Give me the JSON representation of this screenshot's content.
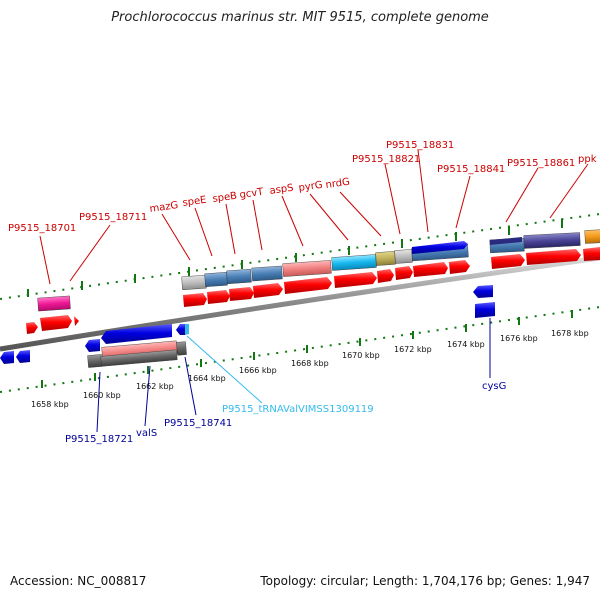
{
  "title": "Prochlorococcus marinus str. MIT 9515, complete genome",
  "footer": {
    "accession": "Accession: NC_008817",
    "summary": "Topology: circular; Length: 1,704,176 bp; Genes: 1,947"
  },
  "scale_ticks": [
    "1658 kbp",
    "1660 kbp",
    "1662 kbp",
    "1664 kbp",
    "1666 kbp",
    "1668 kbp",
    "1670 kbp",
    "1672 kbp",
    "1674 kbp",
    "1676 kbp",
    "1678 kbp"
  ],
  "upper_labels": [
    "P9515_18701",
    "P9515_18711",
    "mazG",
    "speE",
    "speB",
    "gcvT",
    "aspS",
    "pyrG",
    "nrdG",
    "P9515_18821",
    "P9515_18831",
    "P9515_18841",
    "P9515_18861",
    "ppk"
  ],
  "lower_labels": [
    "P9515_18721",
    "valS",
    "P9515_18741",
    "P9515_tRNAValVIMSS1309119",
    "cysG"
  ],
  "colors": {
    "cds_red": "#ff0000",
    "gene_blue": "#0000dd",
    "upper_label": "#cc0000",
    "lower_label": "#000099",
    "trna_label": "#33bbee",
    "tick_green": "#117711"
  }
}
